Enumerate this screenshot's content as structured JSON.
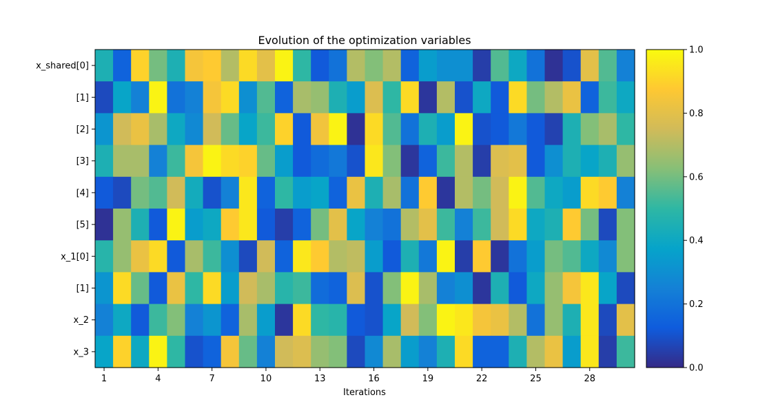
{
  "chart_data": {
    "type": "heatmap",
    "title": "Evolution of the optimization variables",
    "xlabel": "Iterations",
    "ylabel": "",
    "x_tick_labels": [
      "1",
      "4",
      "7",
      "10",
      "13",
      "16",
      "19",
      "22",
      "25",
      "28"
    ],
    "x_tick_columns": [
      1,
      4,
      7,
      10,
      13,
      16,
      19,
      22,
      25,
      28
    ],
    "n_iterations": 30,
    "rows": [
      "x_shared[0]",
      "[1]",
      "[2]",
      "[3]",
      "[4]",
      "[5]",
      "x_1[0]",
      "[1]",
      "x_2",
      "x_3"
    ],
    "colorbar": {
      "range": [
        0,
        1
      ],
      "ticks": [
        "0.0",
        "0.2",
        "0.4",
        "0.6",
        "0.8",
        "1.0"
      ],
      "colors": [
        "#352a87",
        "#0f5cdd",
        "#1481d6",
        "#06a4ca",
        "#2eb7a4",
        "#87bf77",
        "#d1bb59",
        "#fec832",
        "#f9fb0e"
      ]
    },
    "values": [
      [
        0.45,
        0.15,
        0.9,
        0.6,
        0.45,
        0.85,
        0.88,
        0.7,
        0.92,
        0.8,
        0.98,
        0.5,
        0.12,
        0.2,
        0.7,
        0.62,
        0.7,
        0.15,
        0.35,
        0.3,
        0.3,
        0.05,
        0.55,
        0.4,
        0.2,
        0.02,
        0.1,
        0.8,
        0.55,
        0.25
      ],
      [
        0.08,
        0.38,
        0.25,
        0.98,
        0.2,
        0.25,
        0.85,
        0.92,
        0.3,
        0.55,
        0.15,
        0.68,
        0.65,
        0.45,
        0.35,
        0.78,
        0.5,
        0.92,
        0.03,
        0.7,
        0.1,
        0.4,
        0.12,
        0.92,
        0.6,
        0.7,
        0.82,
        0.15,
        0.52,
        0.4
      ],
      [
        0.32,
        0.75,
        0.82,
        0.68,
        0.4,
        0.28,
        0.75,
        0.58,
        0.38,
        0.52,
        0.9,
        0.12,
        0.84,
        0.98,
        0.02,
        0.92,
        0.55,
        0.2,
        0.45,
        0.35,
        0.98,
        0.1,
        0.12,
        0.22,
        0.12,
        0.06,
        0.45,
        0.62,
        0.68,
        0.5
      ],
      [
        0.45,
        0.68,
        0.68,
        0.25,
        0.52,
        0.85,
        0.98,
        0.92,
        0.9,
        0.58,
        0.35,
        0.12,
        0.18,
        0.22,
        0.1,
        0.95,
        0.62,
        0.03,
        0.15,
        0.52,
        0.7,
        0.05,
        0.78,
        0.8,
        0.12,
        0.3,
        0.45,
        0.38,
        0.45,
        0.65
      ],
      [
        0.12,
        0.08,
        0.6,
        0.55,
        0.75,
        0.42,
        0.1,
        0.25,
        0.95,
        0.15,
        0.5,
        0.35,
        0.38,
        0.15,
        0.82,
        0.45,
        0.68,
        0.2,
        0.88,
        0.03,
        0.7,
        0.6,
        0.75,
        0.98,
        0.55,
        0.4,
        0.35,
        0.92,
        0.88,
        0.25
      ],
      [
        0.02,
        0.65,
        0.45,
        0.12,
        0.98,
        0.35,
        0.4,
        0.88,
        0.95,
        0.12,
        0.05,
        0.15,
        0.6,
        0.8,
        0.38,
        0.25,
        0.2,
        0.7,
        0.8,
        0.52,
        0.25,
        0.52,
        0.75,
        0.92,
        0.4,
        0.45,
        0.88,
        0.6,
        0.08,
        0.62
      ],
      [
        0.48,
        0.65,
        0.82,
        0.92,
        0.12,
        0.68,
        0.52,
        0.3,
        0.08,
        0.75,
        0.15,
        0.95,
        0.88,
        0.7,
        0.72,
        0.35,
        0.12,
        0.45,
        0.22,
        0.98,
        0.05,
        0.88,
        0.03,
        0.2,
        0.35,
        0.6,
        0.55,
        0.4,
        0.28,
        0.62
      ],
      [
        0.32,
        0.92,
        0.58,
        0.12,
        0.82,
        0.5,
        0.92,
        0.35,
        0.75,
        0.68,
        0.48,
        0.52,
        0.18,
        0.15,
        0.78,
        0.1,
        0.62,
        0.98,
        0.68,
        0.25,
        0.3,
        0.03,
        0.45,
        0.12,
        0.4,
        0.65,
        0.85,
        0.95,
        0.38,
        0.08
      ],
      [
        0.25,
        0.4,
        0.12,
        0.52,
        0.62,
        0.25,
        0.32,
        0.15,
        0.68,
        0.35,
        0.03,
        0.92,
        0.5,
        0.48,
        0.12,
        0.1,
        0.38,
        0.75,
        0.62,
        0.98,
        0.95,
        0.85,
        0.82,
        0.7,
        0.2,
        0.65,
        0.45,
        0.95,
        0.08,
        0.8
      ],
      [
        0.38,
        0.9,
        0.4,
        0.98,
        0.5,
        0.1,
        0.15,
        0.85,
        0.58,
        0.25,
        0.75,
        0.78,
        0.65,
        0.62,
        0.08,
        0.28,
        0.68,
        0.35,
        0.25,
        0.45,
        0.92,
        0.15,
        0.15,
        0.45,
        0.7,
        0.82,
        0.35,
        0.95,
        0.05,
        0.52
      ]
    ]
  }
}
